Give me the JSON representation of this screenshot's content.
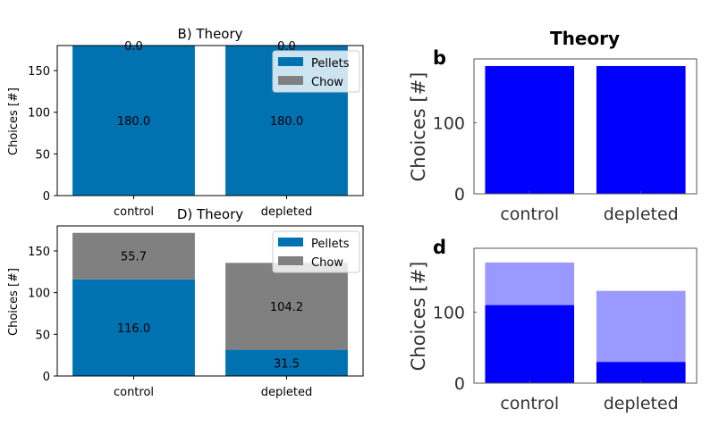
{
  "colors": {
    "pellets": "#0072b2",
    "chow": "#808080",
    "matlab_pellets": "#0000ff",
    "matlab_chow": "#9999ff"
  },
  "left_panels": [
    {
      "title": "B) Theory",
      "ylabel": "Choices [#]",
      "legend": [
        "Pellets",
        "Chow"
      ],
      "categories": [
        "control",
        "depleted"
      ],
      "yticks": [
        "0",
        "50",
        "100",
        "150"
      ],
      "pellets_labels": [
        "180.0",
        "180.0"
      ],
      "chow_labels": [
        "0.0",
        "0.0"
      ]
    },
    {
      "title": "D) Theory",
      "ylabel": "Choices [#]",
      "legend": [
        "Pellets",
        "Chow"
      ],
      "categories": [
        "control",
        "depleted"
      ],
      "yticks": [
        "0",
        "50",
        "100",
        "150"
      ],
      "pellets_labels": [
        "116.0",
        "31.5"
      ],
      "chow_labels": [
        "55.7",
        "104.2"
      ]
    }
  ],
  "right_panels": {
    "title": "Theory",
    "letters": [
      "b",
      "d"
    ],
    "ylabel": "Choices [#]",
    "categories": [
      "control",
      "depleted"
    ],
    "yticks": [
      "0",
      "100"
    ]
  },
  "chart_data": [
    {
      "type": "bar",
      "stacked": true,
      "title": "B) Theory",
      "ylabel": "Choices [#]",
      "categories": [
        "control",
        "depleted"
      ],
      "series": [
        {
          "name": "Pellets",
          "values": [
            180.0,
            180.0
          ]
        },
        {
          "name": "Chow",
          "values": [
            0.0,
            0.0
          ]
        }
      ],
      "ylim": [
        0,
        180
      ],
      "legend": "top-right"
    },
    {
      "type": "bar",
      "stacked": true,
      "title": "D) Theory",
      "ylabel": "Choices [#]",
      "categories": [
        "control",
        "depleted"
      ],
      "series": [
        {
          "name": "Pellets",
          "values": [
            116.0,
            31.5
          ]
        },
        {
          "name": "Chow",
          "values": [
            55.7,
            104.2
          ]
        }
      ],
      "ylim": [
        0,
        180
      ],
      "legend": "top-right"
    },
    {
      "type": "bar",
      "stacked": true,
      "title": "Theory",
      "panel": "b",
      "ylabel": "Choices [#]",
      "categories": [
        "control",
        "depleted"
      ],
      "series": [
        {
          "values": [
            180,
            180
          ]
        },
        {
          "values": [
            0,
            0
          ]
        }
      ],
      "ylim": [
        0,
        190
      ]
    },
    {
      "type": "bar",
      "stacked": true,
      "panel": "d",
      "ylabel": "Choices [#]",
      "categories": [
        "control",
        "depleted"
      ],
      "series": [
        {
          "values": [
            110,
            30
          ]
        },
        {
          "values": [
            60,
            100
          ]
        }
      ],
      "ylim": [
        0,
        190
      ]
    }
  ]
}
